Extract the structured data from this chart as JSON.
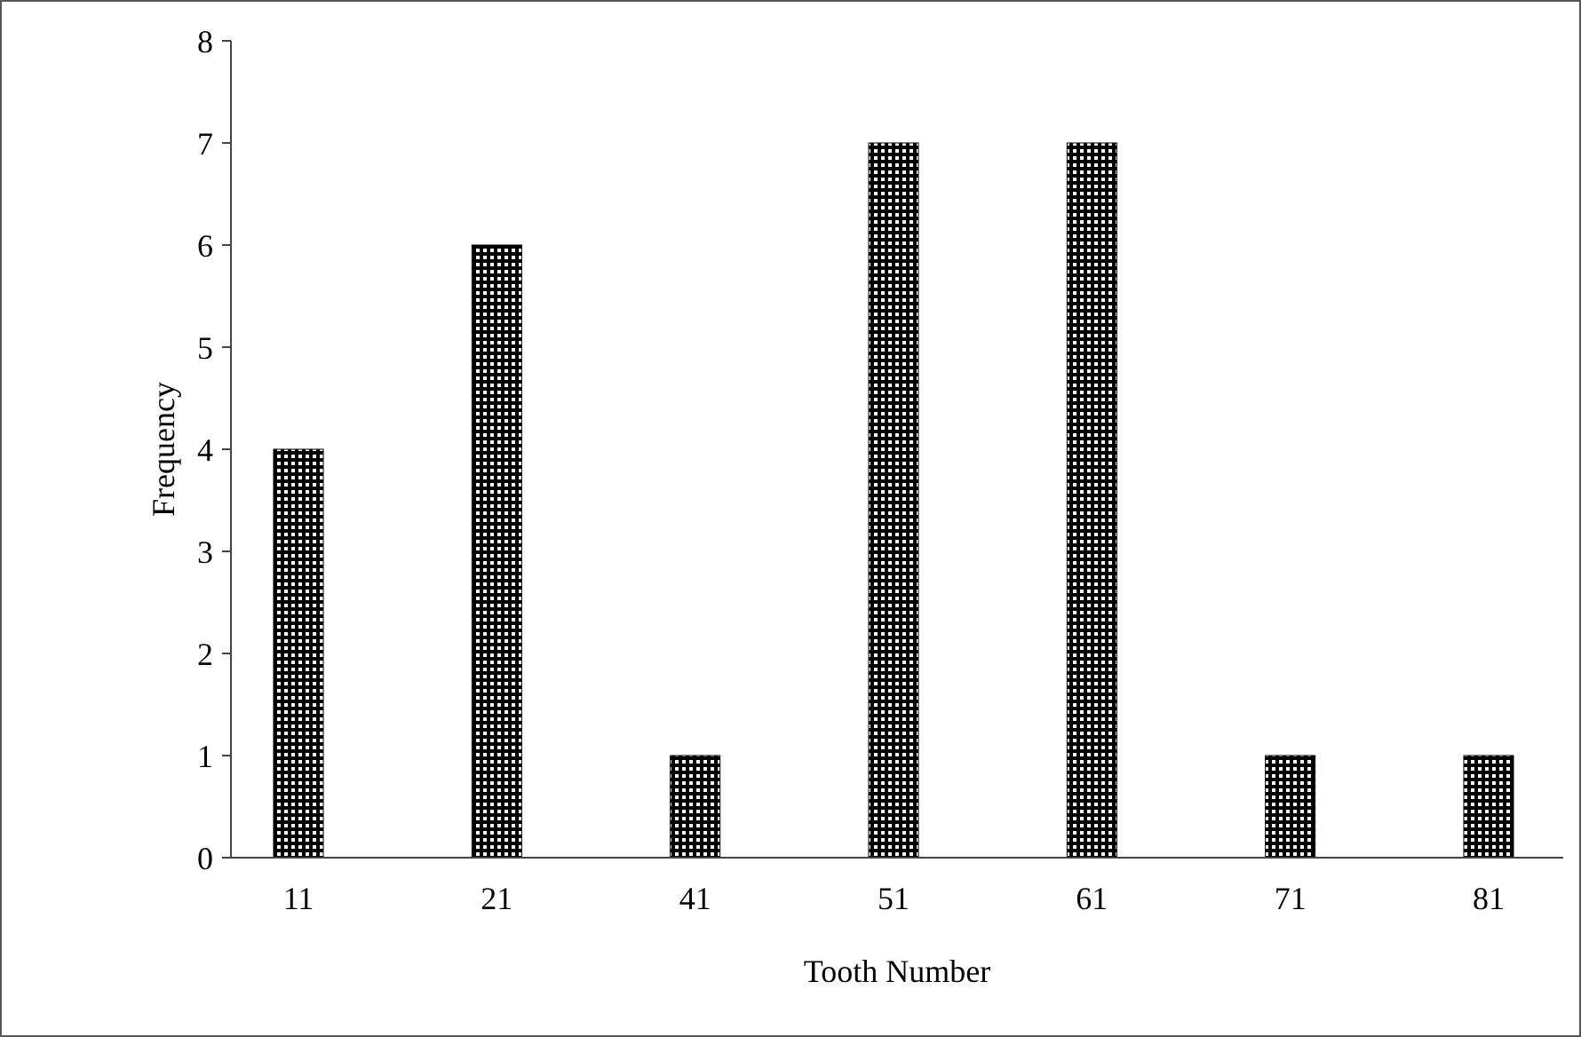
{
  "chart_data": {
    "type": "bar",
    "xlabel": "Tooth Number",
    "ylabel": "Frequency",
    "categories": [
      "11",
      "21",
      "41",
      "51",
      "61",
      "71",
      "81"
    ],
    "values": [
      4,
      6,
      1,
      7,
      7,
      1,
      1
    ],
    "color": "#000000",
    "ylim": [
      0,
      8
    ],
    "yticks": [
      0,
      1,
      2,
      3,
      4,
      5,
      6,
      7,
      8
    ],
    "grid": false
  }
}
